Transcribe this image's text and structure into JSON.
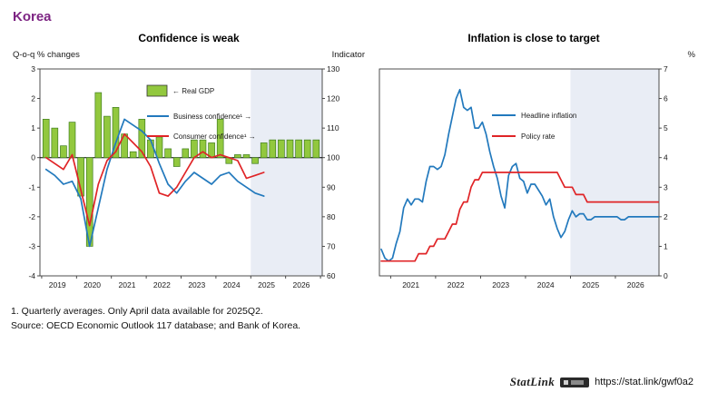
{
  "page": {
    "title": "Korea"
  },
  "colors": {
    "accent": "#7d2483",
    "gdp_bar": "#92c83e",
    "gdp_bar_border": "#3f7d1e",
    "blue_line": "#2279bd",
    "red_line": "#e02427",
    "forecast_band": "#e9edf5",
    "axis": "#3a3a3a"
  },
  "footnotes": [
    "1. Quarterly averages. Only April data available for 2025Q2.",
    "Source: OECD Economic Outlook 117 database; and Bank of Korea."
  ],
  "statlink": {
    "label": "StatLink",
    "logo_icon": "statlink-barcode-logo",
    "url": "https://stat.link/gwf0a2"
  },
  "chart_data": [
    {
      "type": "bar+line",
      "title": "Confidence is weak",
      "left_axis_label": "Q-o-q % changes",
      "right_axis_label": "Indicator",
      "left_ylim": [
        -4,
        3
      ],
      "right_ylim": [
        60,
        130
      ],
      "left_ticks": [
        3,
        2,
        1,
        0,
        -1,
        -2,
        -3,
        -4
      ],
      "right_ticks": [
        130,
        120,
        110,
        100,
        90,
        80,
        70,
        60
      ],
      "xlim": [
        2018.95,
        2027.05
      ],
      "x_year_ticks": [
        2019,
        2020,
        2021,
        2022,
        2023,
        2024,
        2025,
        2026
      ],
      "forecast_start": 2025.0,
      "legend_position": "top-center-inside",
      "grid": false,
      "bar_series": {
        "name": "← Real GDP",
        "axis": "left",
        "x_start": 2019.0,
        "x_step": 0.25,
        "values": [
          1.3,
          1.0,
          0.4,
          1.2,
          -1.3,
          -3.0,
          2.2,
          1.4,
          1.7,
          0.8,
          0.2,
          1.3,
          0.6,
          0.7,
          0.3,
          -0.3,
          0.3,
          0.6,
          0.6,
          0.5,
          1.3,
          -0.2,
          0.1,
          0.1,
          -0.2,
          0.5,
          0.6,
          0.6,
          0.6,
          0.6,
          0.6,
          0.6
        ]
      },
      "line_series": [
        {
          "name": "Business confidence¹ →",
          "color_key": "blue_line",
          "axis": "right",
          "x_start": 2019.0,
          "x_step": 0.25,
          "values": [
            96,
            94,
            91,
            92,
            86,
            70,
            83,
            96,
            105,
            113,
            111,
            109,
            106,
            98,
            91,
            88,
            92,
            95,
            93,
            91,
            94,
            95,
            92,
            90,
            88,
            87
          ]
        },
        {
          "name": "Consumer confidence¹ →",
          "color_key": "red_line",
          "axis": "right",
          "x_start": 2019.0,
          "x_step": 0.25,
          "values": [
            100,
            98,
            96,
            101,
            89,
            77,
            91,
            99,
            102,
            108,
            105,
            102,
            97,
            88,
            87,
            90,
            95,
            100,
            102,
            100,
            101,
            100,
            99,
            93,
            94,
            95
          ]
        }
      ]
    },
    {
      "type": "line",
      "title": "Inflation is close to target",
      "left_axis_label": "",
      "right_axis_label": "%",
      "ylim": [
        0,
        7
      ],
      "y_ticks": [
        7,
        6,
        5,
        4,
        3,
        2,
        1,
        0
      ],
      "xlim": [
        2020.75,
        2026.97
      ],
      "x_year_ticks": [
        2021,
        2022,
        2023,
        2024,
        2025,
        2026
      ],
      "forecast_start": 2025.0,
      "legend_position": "center-inside",
      "grid": false,
      "line_series": [
        {
          "name": "Headline inflation",
          "color_key": "blue_line",
          "x_start": 2020.79,
          "x_step": 0.08333,
          "values": [
            0.9,
            0.6,
            0.5,
            0.6,
            1.1,
            1.5,
            2.3,
            2.6,
            2.4,
            2.6,
            2.6,
            2.5,
            3.2,
            3.7,
            3.7,
            3.6,
            3.7,
            4.1,
            4.8,
            5.4,
            6.0,
            6.3,
            5.7,
            5.6,
            5.7,
            5.0,
            5.0,
            5.2,
            4.8,
            4.2,
            3.7,
            3.3,
            2.7,
            2.3,
            3.4,
            3.7,
            3.8,
            3.3,
            3.2,
            2.8,
            3.1,
            3.1,
            2.9,
            2.7,
            2.4,
            2.6,
            2.0,
            1.6,
            1.3,
            1.5,
            1.9,
            2.2,
            2.0,
            2.1,
            2.1,
            1.9,
            1.9,
            2.0,
            2.0,
            2.0,
            2.0,
            2.0,
            2.0,
            2.0,
            1.9,
            1.9,
            2.0,
            2.0,
            2.0,
            2.0,
            2.0,
            2.0,
            2.0,
            2.0,
            2.0
          ]
        },
        {
          "name": "Policy rate",
          "color_key": "red_line",
          "x_start": 2020.79,
          "x_step": 0.08333,
          "values": [
            0.5,
            0.5,
            0.5,
            0.5,
            0.5,
            0.5,
            0.5,
            0.5,
            0.5,
            0.5,
            0.75,
            0.75,
            0.75,
            1.0,
            1.0,
            1.25,
            1.25,
            1.25,
            1.5,
            1.75,
            1.75,
            2.25,
            2.5,
            2.5,
            3.0,
            3.25,
            3.25,
            3.5,
            3.5,
            3.5,
            3.5,
            3.5,
            3.5,
            3.5,
            3.5,
            3.5,
            3.5,
            3.5,
            3.5,
            3.5,
            3.5,
            3.5,
            3.5,
            3.5,
            3.5,
            3.5,
            3.5,
            3.5,
            3.25,
            3.0,
            3.0,
            3.0,
            2.75,
            2.75,
            2.75,
            2.5,
            2.5,
            2.5,
            2.5,
            2.5,
            2.5,
            2.5,
            2.5,
            2.5,
            2.5,
            2.5,
            2.5,
            2.5,
            2.5,
            2.5,
            2.5,
            2.5,
            2.5,
            2.5,
            2.5
          ]
        }
      ]
    }
  ]
}
